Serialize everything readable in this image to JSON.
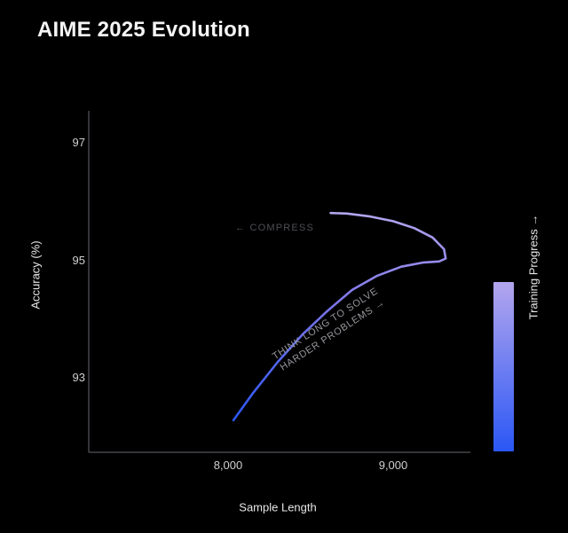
{
  "page": {
    "title": "AIME 2025 Evolution"
  },
  "chart_data": {
    "type": "line",
    "title": "AIME 2025 Evolution",
    "xlabel": "Sample Length",
    "ylabel": "Accuracy (%)",
    "xlim": [
      7150,
      9470
    ],
    "ylim": [
      91.7,
      97.55
    ],
    "x_ticks": [
      8000,
      9000
    ],
    "x_tick_labels": [
      "8,000",
      "9,000"
    ],
    "y_ticks": [
      97,
      95,
      93
    ],
    "y_tick_labels": [
      "97",
      "95",
      "93"
    ],
    "grid": false,
    "legend": false,
    "series": [
      {
        "name": "training-trajectory",
        "description": "Accuracy vs sample length over training; rises with longer samples then compresses to shorter samples at higher accuracy",
        "points": [
          [
            8030,
            92.25
          ],
          [
            8150,
            92.72
          ],
          [
            8300,
            93.25
          ],
          [
            8450,
            93.72
          ],
          [
            8600,
            94.12
          ],
          [
            8750,
            94.48
          ],
          [
            8900,
            94.72
          ],
          [
            9050,
            94.88
          ],
          [
            9180,
            94.95
          ],
          [
            9280,
            94.97
          ],
          [
            9320,
            95.02
          ],
          [
            9310,
            95.18
          ],
          [
            9240,
            95.38
          ],
          [
            9130,
            95.54
          ],
          [
            9000,
            95.66
          ],
          [
            8860,
            95.74
          ],
          [
            8720,
            95.79
          ],
          [
            8620,
            95.8
          ]
        ]
      }
    ],
    "line_colors": {
      "start": "#2b57f5",
      "mid": "#7b74e9",
      "end": "#b3a6ee"
    },
    "annotations": [
      {
        "id": "compress",
        "text": "← COMPRESS",
        "rotation_deg": 0,
        "approx_x": 8100,
        "approx_y": 95.45
      },
      {
        "id": "think-long",
        "lines": [
          "THINK LONG TO SOLVE",
          "HARDER PROBLEMS →"
        ],
        "rotation_deg": -33,
        "approx_x": 8560,
        "approx_y": 93.85
      }
    ],
    "colorbar": {
      "label": "Training Progress →",
      "color_bottom": "#2b57f5",
      "color_top": "#b3a6ee"
    }
  }
}
